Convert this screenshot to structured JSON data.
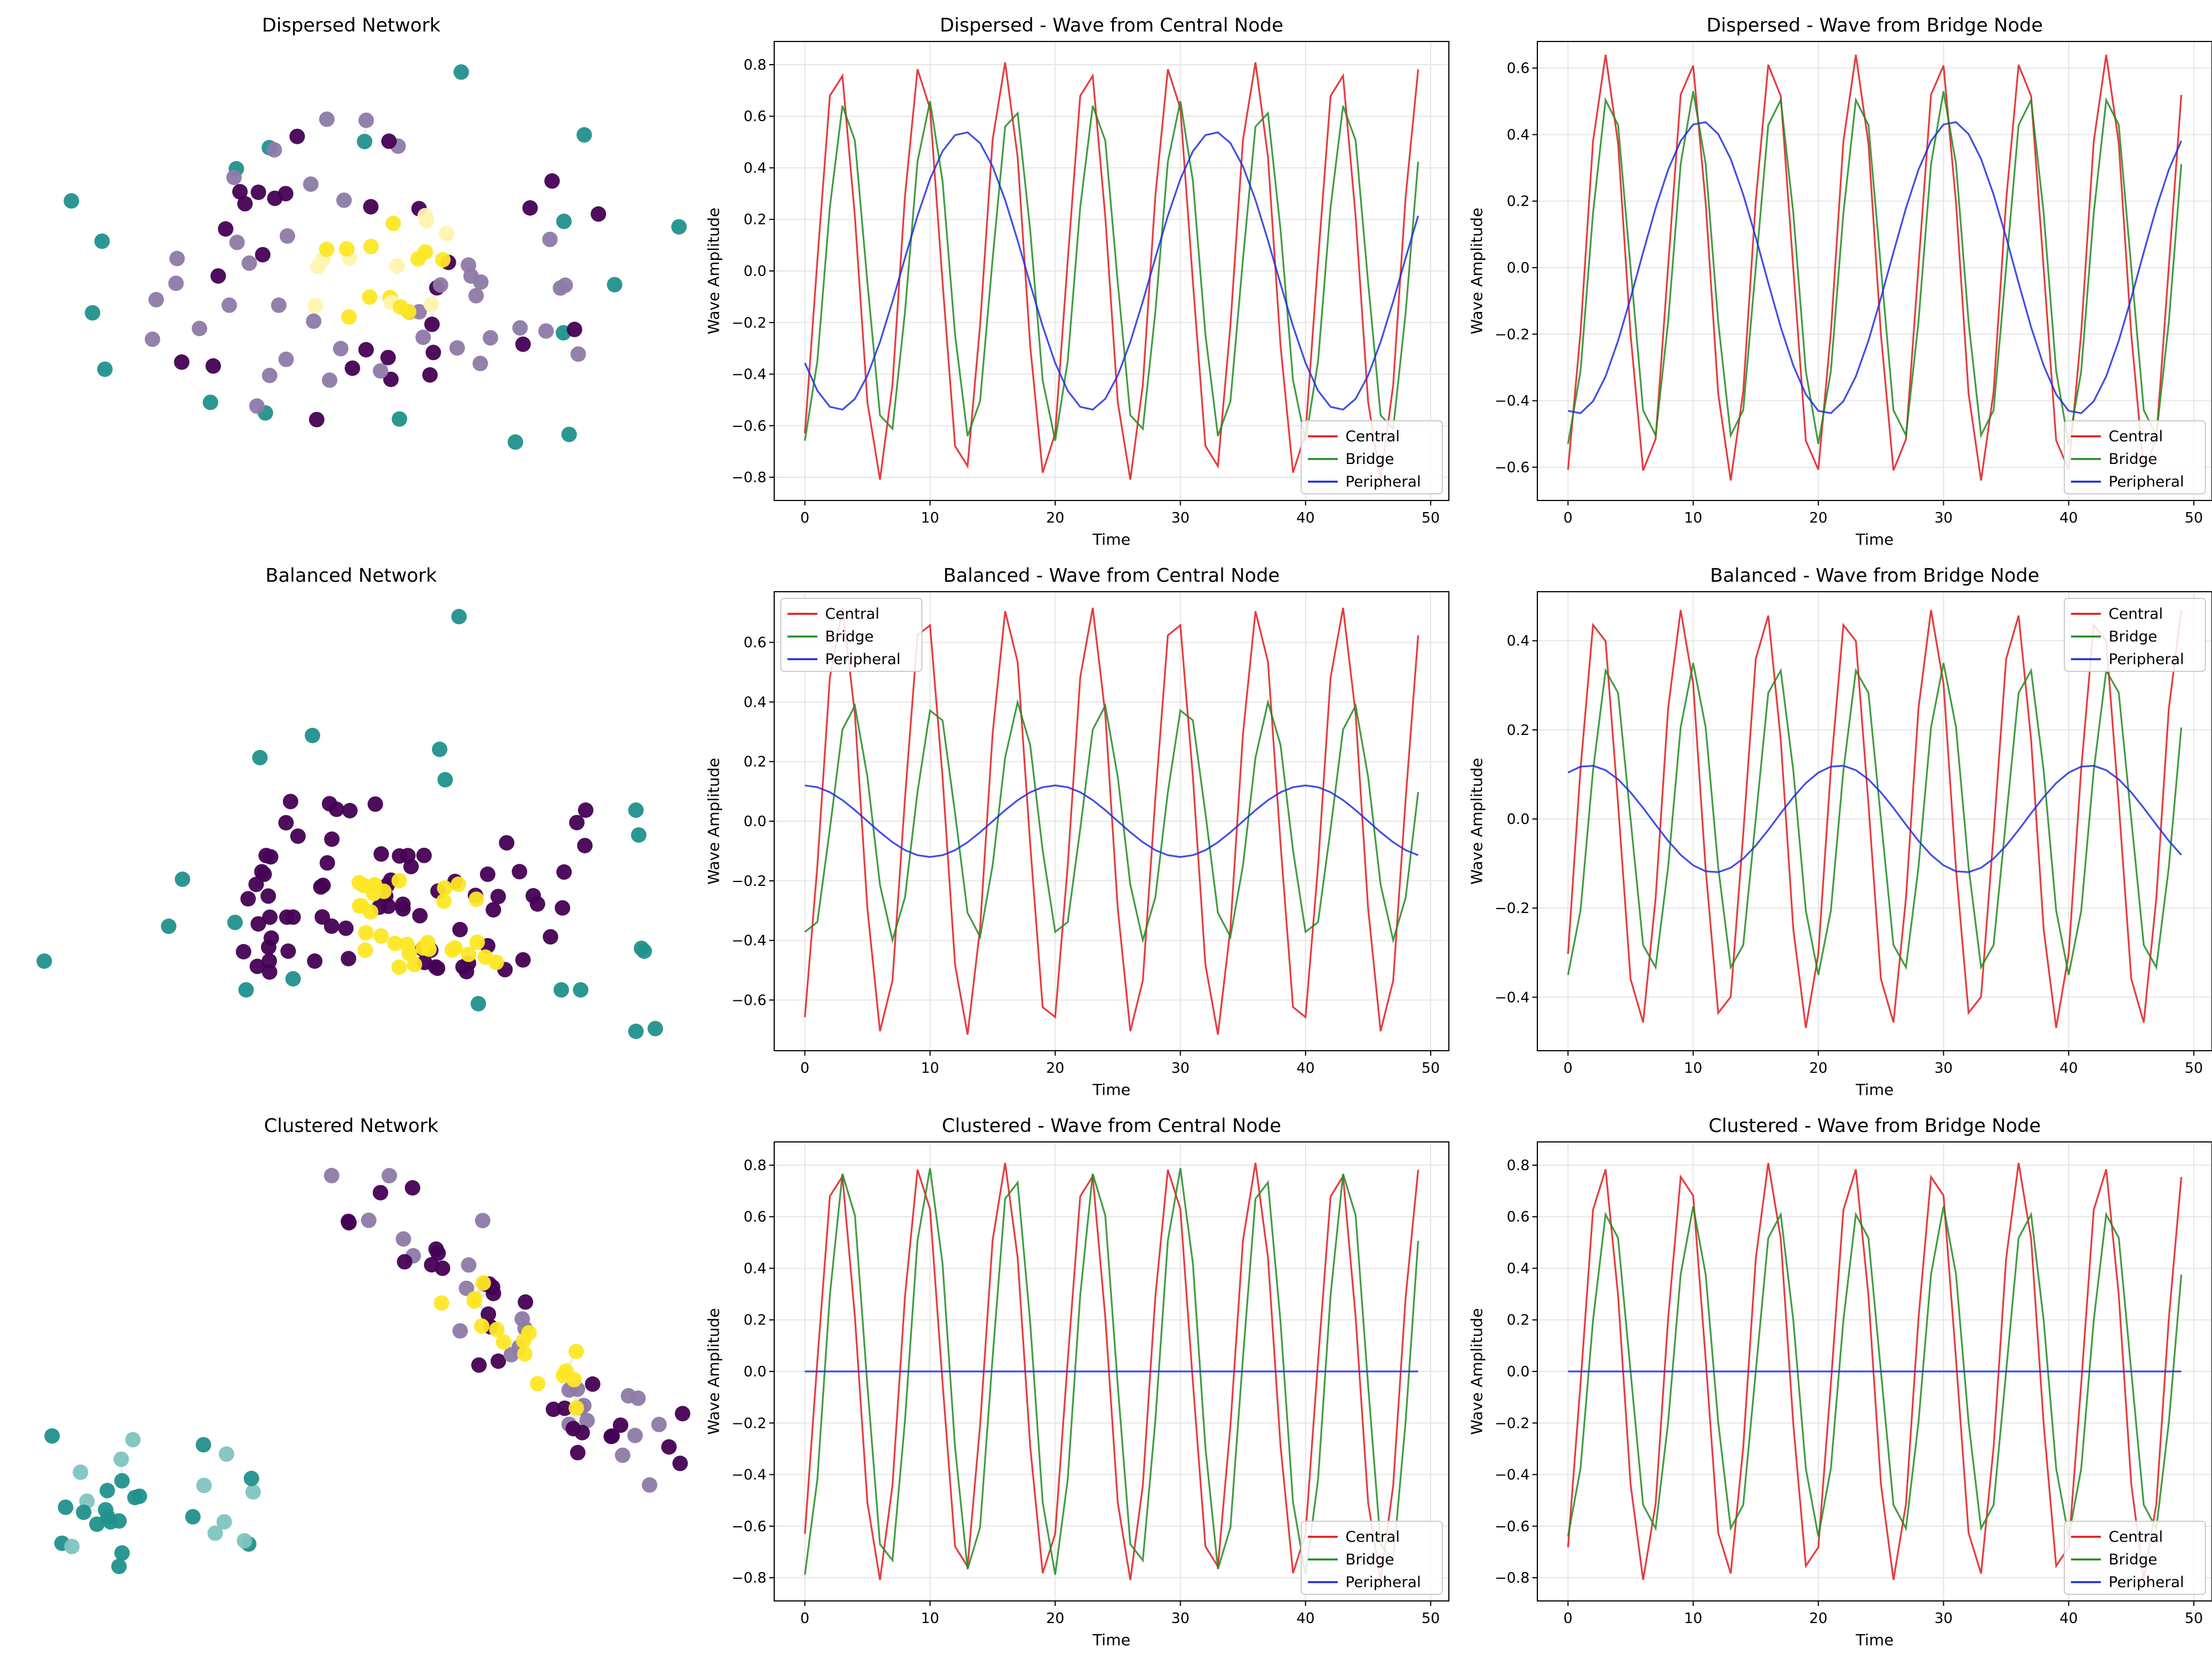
{
  "colors": {
    "central": "#e31a1c",
    "bridge": "#228b22",
    "peripheral": "#1f2fe0",
    "node_teal": "#21918c",
    "node_purple": "#440154",
    "node_yellow": "#fde725",
    "grid": "#e6e6e6"
  },
  "chart_data": [
    {
      "type": "scatter",
      "kind": "network",
      "title": "Dispersed Network",
      "seed": 11,
      "layout": "dispersed",
      "edge_opacity": 0.35
    },
    {
      "type": "line",
      "title": "Dispersed - Wave from Central Node",
      "xlabel": "Time",
      "ylabel": "Wave Amplitude",
      "xlim": [
        -2.45,
        51.45
      ],
      "ylim": [
        -0.89,
        0.89
      ],
      "xticks": [
        0,
        10,
        20,
        30,
        40,
        50
      ],
      "yticks": [
        -0.8,
        -0.6,
        -0.4,
        -0.2,
        0.0,
        0.2,
        0.4,
        0.6,
        0.8
      ],
      "ytick_labels": [
        "−0.8",
        "−0.6",
        "−0.4",
        "−0.2",
        "0.0",
        "0.2",
        "0.4",
        "0.6",
        "0.8"
      ],
      "legend": "lower right",
      "series": [
        {
          "name": "Central",
          "color_key": "central",
          "amp": 0.81,
          "period": 6.667,
          "phase": -0.89
        },
        {
          "name": "Bridge",
          "color_key": "bridge",
          "amp": 0.66,
          "period": 6.667,
          "phase": -1.5
        },
        {
          "name": "Peripheral",
          "color_key": "peripheral",
          "amp": 0.54,
          "period": 20.0,
          "phase": -2.42
        }
      ]
    },
    {
      "type": "line",
      "title": "Dispersed - Wave from Bridge Node",
      "xlabel": "Time",
      "ylabel": "Wave Amplitude",
      "xlim": [
        -2.45,
        51.45
      ],
      "ylim": [
        -0.7,
        0.68
      ],
      "xticks": [
        0,
        10,
        20,
        30,
        40,
        50
      ],
      "yticks": [
        -0.6,
        -0.4,
        -0.2,
        0.0,
        0.2,
        0.4,
        0.6
      ],
      "ytick_labels": [
        "−0.6",
        "−0.4",
        "−0.2",
        "0.0",
        "0.2",
        "0.4",
        "0.6"
      ],
      "legend": "lower right",
      "series": [
        {
          "name": "Central",
          "color_key": "central",
          "amp": 0.64,
          "period": 6.667,
          "phase": -1.25
        },
        {
          "name": "Bridge",
          "color_key": "bridge",
          "amp": 0.53,
          "period": 6.667,
          "phase": -1.57
        },
        {
          "name": "Peripheral",
          "color_key": "peripheral",
          "amp": 0.44,
          "period": 20.0,
          "phase": -1.78
        }
      ]
    },
    {
      "type": "scatter",
      "kind": "network",
      "title": "Balanced Network",
      "seed": 23,
      "layout": "balanced",
      "edge_opacity": 0.0
    },
    {
      "type": "line",
      "title": "Balanced - Wave from Central Node",
      "xlabel": "Time",
      "ylabel": "Wave Amplitude",
      "xlim": [
        -2.45,
        51.45
      ],
      "ylim": [
        -0.77,
        0.77
      ],
      "xticks": [
        0,
        10,
        20,
        30,
        40,
        50
      ],
      "yticks": [
        -0.6,
        -0.4,
        -0.2,
        0.0,
        0.2,
        0.4,
        0.6
      ],
      "ytick_labels": [
        "−0.6",
        "−0.4",
        "−0.2",
        "0.0",
        "0.2",
        "0.4",
        "0.6"
      ],
      "legend": "upper left",
      "series": [
        {
          "name": "Central",
          "color_key": "central",
          "amp": 0.72,
          "period": 6.667,
          "phase": -1.15
        },
        {
          "name": "Bridge",
          "color_key": "bridge",
          "amp": 0.4,
          "period": 6.667,
          "phase": -1.95
        },
        {
          "name": "Peripheral",
          "color_key": "peripheral",
          "amp": 0.12,
          "period": 20.0,
          "phase": 1.57
        }
      ]
    },
    {
      "type": "line",
      "title": "Balanced - Wave from Bridge Node",
      "xlabel": "Time",
      "ylabel": "Wave Amplitude",
      "xlim": [
        -2.45,
        51.45
      ],
      "ylim": [
        -0.52,
        0.51
      ],
      "xticks": [
        0,
        10,
        20,
        30,
        40,
        50
      ],
      "yticks": [
        -0.4,
        -0.2,
        0.0,
        0.2,
        0.4
      ],
      "ytick_labels": [
        "−0.4",
        "−0.2",
        "0.0",
        "0.2",
        "0.4"
      ],
      "legend": "upper right",
      "series": [
        {
          "name": "Central",
          "color_key": "central",
          "amp": 0.47,
          "period": 6.667,
          "phase": -0.7
        },
        {
          "name": "Bridge",
          "color_key": "bridge",
          "amp": 0.35,
          "period": 6.667,
          "phase": -1.57
        },
        {
          "name": "Peripheral",
          "color_key": "peripheral",
          "amp": 0.12,
          "period": 20.0,
          "phase": 1.05
        }
      ]
    },
    {
      "type": "scatter",
      "kind": "network",
      "title": "Clustered Network",
      "seed": 37,
      "layout": "clustered",
      "edge_opacity": 0.45
    },
    {
      "type": "line",
      "title": "Clustered - Wave from Central Node",
      "xlabel": "Time",
      "ylabel": "Wave Amplitude",
      "xlim": [
        -2.45,
        51.45
      ],
      "ylim": [
        -0.89,
        0.89
      ],
      "xticks": [
        0,
        10,
        20,
        30,
        40,
        50
      ],
      "yticks": [
        -0.8,
        -0.6,
        -0.4,
        -0.2,
        0.0,
        0.2,
        0.4,
        0.6,
        0.8
      ],
      "ytick_labels": [
        "−0.8",
        "−0.6",
        "−0.4",
        "−0.2",
        "0.0",
        "0.2",
        "0.4",
        "0.6",
        "0.8"
      ],
      "legend": "lower right",
      "series": [
        {
          "name": "Central",
          "color_key": "central",
          "amp": 0.81,
          "period": 6.667,
          "phase": -0.89
        },
        {
          "name": "Bridge",
          "color_key": "bridge",
          "amp": 0.79,
          "period": 6.667,
          "phase": -1.5
        },
        {
          "name": "Peripheral",
          "color_key": "peripheral",
          "amp": 0.0,
          "period": 20.0,
          "phase": 0.0
        }
      ]
    },
    {
      "type": "line",
      "title": "Clustered - Wave from Bridge Node",
      "xlabel": "Time",
      "ylabel": "Wave Amplitude",
      "xlim": [
        -2.45,
        51.45
      ],
      "ylim": [
        -0.89,
        0.89
      ],
      "xticks": [
        0,
        10,
        20,
        30,
        40,
        50
      ],
      "yticks": [
        -0.8,
        -0.6,
        -0.4,
        -0.2,
        0.0,
        0.2,
        0.4,
        0.6,
        0.8
      ],
      "ytick_labels": [
        "−0.8",
        "−0.6",
        "−0.4",
        "−0.2",
        "0.0",
        "0.2",
        "0.4",
        "0.6",
        "0.8"
      ],
      "legend": "lower right",
      "series": [
        {
          "name": "Central",
          "color_key": "central",
          "amp": 0.81,
          "period": 6.667,
          "phase": -1.0
        },
        {
          "name": "Bridge",
          "color_key": "bridge",
          "amp": 0.64,
          "period": 6.667,
          "phase": -1.57
        },
        {
          "name": "Peripheral",
          "color_key": "peripheral",
          "amp": 0.0,
          "period": 20.0,
          "phase": 0.0
        }
      ]
    }
  ]
}
